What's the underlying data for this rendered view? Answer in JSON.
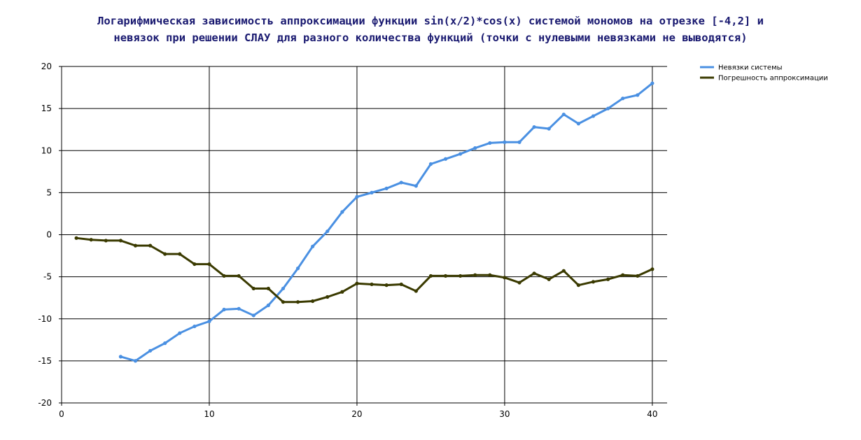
{
  "chart_data": {
    "type": "line",
    "title_lines": [
      "Логарифмическая зависимость аппроксимации функции sin(x/2)*cos(x) системой мономов на отрезке [-4,2] и",
      "невязок при решении СЛАУ для разного количества функций (точки с нулевыми невязками не выводятся)"
    ],
    "xlim": [
      0,
      41
    ],
    "ylim": [
      -20,
      20
    ],
    "x_ticks": [
      0,
      10,
      20,
      30,
      40
    ],
    "y_ticks": [
      20,
      15,
      10,
      5,
      0,
      -5,
      -10,
      -15,
      -20
    ],
    "grid": true,
    "legend_position": "top-right",
    "series": [
      {
        "name": "Невязки системы",
        "color": "#4a90e2",
        "x": [
          4,
          5,
          6,
          7,
          8,
          9,
          10,
          11,
          12,
          13,
          14,
          15,
          16,
          17,
          18,
          19,
          20,
          21,
          22,
          23,
          24,
          25,
          26,
          27,
          28,
          29,
          30,
          31,
          32,
          33,
          34,
          35,
          36,
          37,
          38,
          39,
          40
        ],
        "y": [
          -14.5,
          -15.0,
          -13.8,
          -12.9,
          -11.7,
          -10.9,
          -10.3,
          -8.9,
          -8.8,
          -9.6,
          -8.4,
          -6.4,
          -4.0,
          -1.4,
          0.4,
          2.7,
          4.5,
          5.0,
          5.5,
          6.2,
          5.8,
          8.4,
          9.0,
          9.6,
          10.3,
          10.9,
          11.0,
          11.0,
          12.8,
          12.6,
          14.3,
          13.2,
          14.1,
          15.0,
          16.2,
          16.6,
          18.0
        ]
      },
      {
        "name": "Погрешность аппроксимации",
        "color": "#3a3a00",
        "x": [
          1,
          2,
          3,
          4,
          5,
          6,
          7,
          8,
          9,
          10,
          11,
          12,
          13,
          14,
          15,
          16,
          17,
          18,
          19,
          20,
          21,
          22,
          23,
          24,
          25,
          26,
          27,
          28,
          29,
          30,
          31,
          32,
          33,
          34,
          35,
          36,
          37,
          38,
          39,
          40
        ],
        "y": [
          -0.4,
          -0.6,
          -0.7,
          -0.7,
          -1.3,
          -1.3,
          -2.3,
          -2.3,
          -3.5,
          -3.5,
          -4.9,
          -4.9,
          -6.4,
          -6.4,
          -8.0,
          -8.0,
          -7.9,
          -7.4,
          -6.8,
          -5.8,
          -5.9,
          -6.0,
          -5.9,
          -6.7,
          -4.9,
          -4.9,
          -4.9,
          -4.8,
          -4.8,
          -5.1,
          -5.7,
          -4.6,
          -5.3,
          -4.3,
          -6.0,
          -5.6,
          -5.3,
          -4.8,
          -4.9,
          -4.1
        ]
      }
    ]
  }
}
